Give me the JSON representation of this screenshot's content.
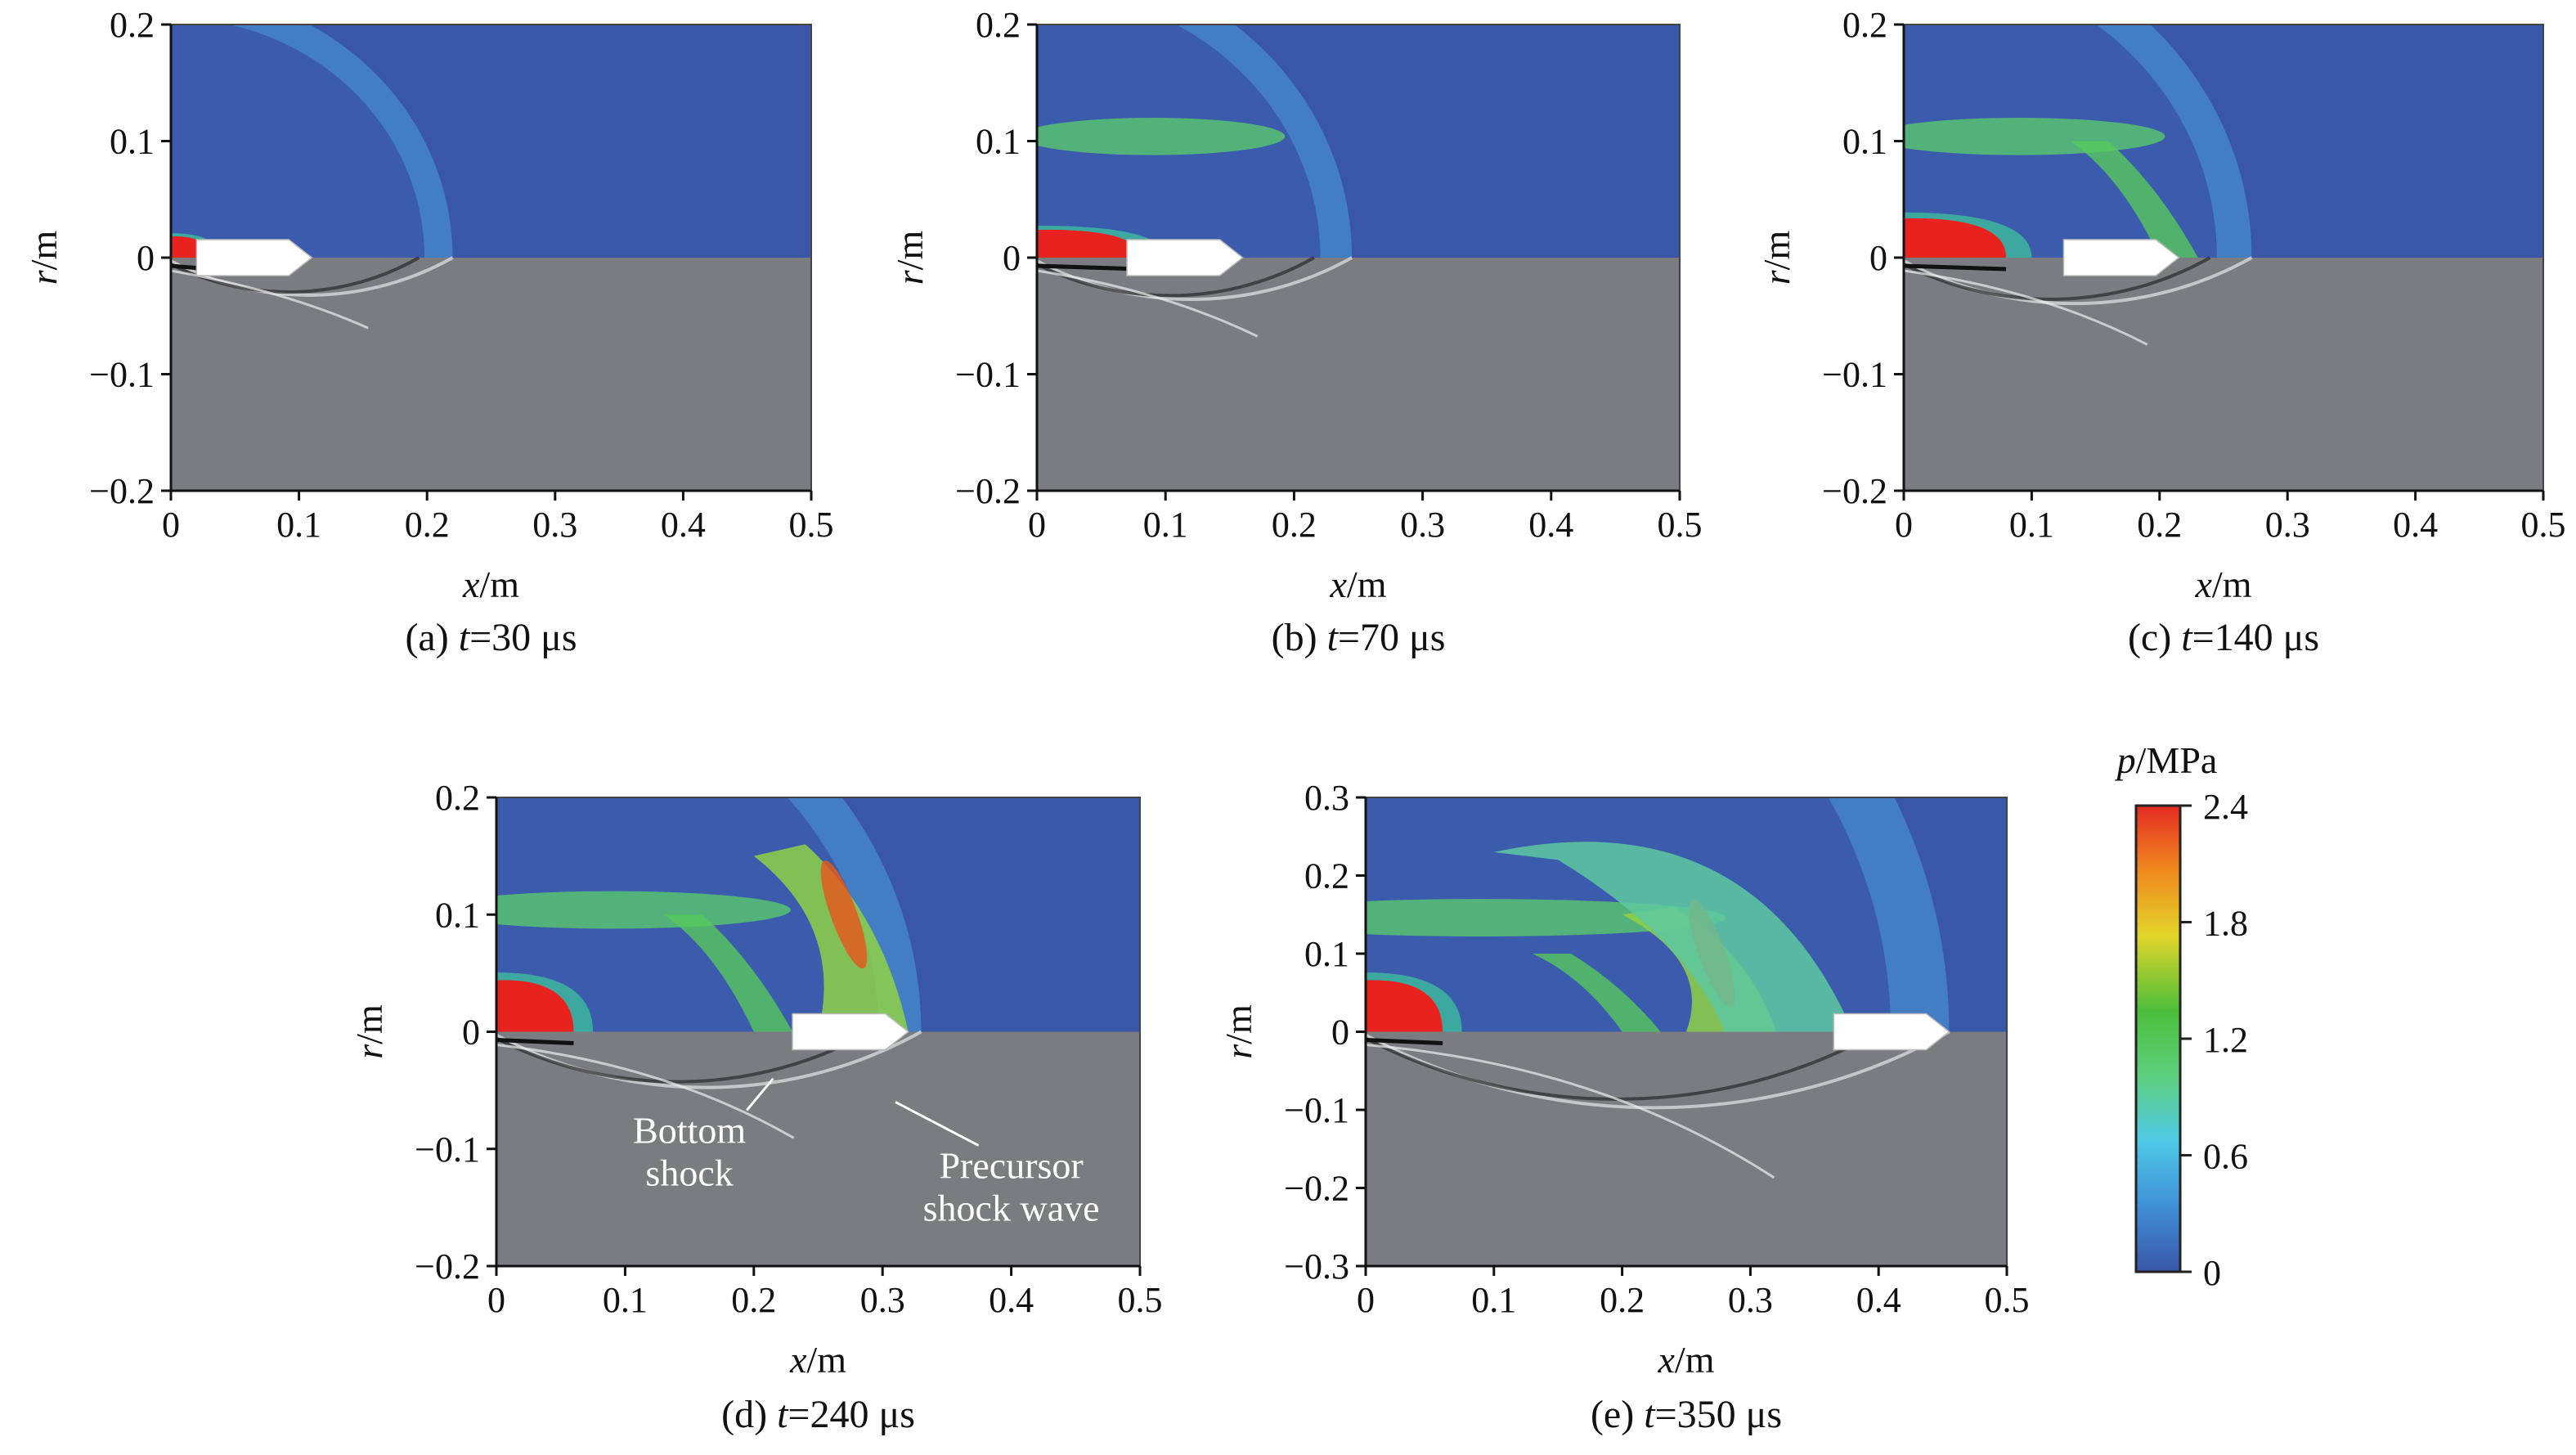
{
  "chart_data": [
    {
      "type": "heatmap",
      "panel": "(a)",
      "caption_prefix": "(a) ",
      "caption_var": "t",
      "caption_rest": "=30 μs",
      "time_us": 30,
      "xlabel_var": "x",
      "xlabel_unit": "/m",
      "ylabel_var": "r",
      "ylabel_unit": "/m",
      "xlim": [
        0,
        0.5
      ],
      "ylim": [
        -0.2,
        0.2
      ],
      "xticks": [
        0,
        0.1,
        0.2,
        0.3,
        0.4,
        0.5
      ],
      "yticks": [
        -0.2,
        -0.1,
        0,
        0.1,
        0.2
      ],
      "upper_half": "pressure contour",
      "lower_half": "numerical schlieren",
      "projectile_nose_x": 0.11,
      "shock_front_x": 0.22,
      "high_pressure_end_x": 0.03,
      "annotations": []
    },
    {
      "type": "heatmap",
      "panel": "(b)",
      "caption_prefix": "(b) ",
      "caption_var": "t",
      "caption_rest": "=70 μs",
      "time_us": 70,
      "xlabel_var": "x",
      "xlabel_unit": "/m",
      "ylabel_var": "r",
      "ylabel_unit": "/m",
      "xlim": [
        0,
        0.5
      ],
      "ylim": [
        -0.2,
        0.2
      ],
      "xticks": [
        0,
        0.1,
        0.2,
        0.3,
        0.4,
        0.5
      ],
      "yticks": [
        -0.2,
        -0.1,
        0,
        0.1,
        0.2
      ],
      "upper_half": "pressure contour",
      "lower_half": "numerical schlieren",
      "projectile_nose_x": 0.16,
      "shock_front_x": 0.245,
      "high_pressure_end_x": 0.08,
      "annotations": []
    },
    {
      "type": "heatmap",
      "panel": "(c)",
      "caption_prefix": "(c) ",
      "caption_var": "t",
      "caption_rest": "=140 μs",
      "time_us": 140,
      "xlabel_var": "x",
      "xlabel_unit": "/m",
      "ylabel_var": "r",
      "ylabel_unit": "/m",
      "xlim": [
        0,
        0.5
      ],
      "ylim": [
        -0.2,
        0.2
      ],
      "xticks": [
        0,
        0.1,
        0.2,
        0.3,
        0.4,
        0.5
      ],
      "yticks": [
        -0.2,
        -0.1,
        0,
        0.1,
        0.2
      ],
      "upper_half": "pressure contour",
      "lower_half": "numerical schlieren",
      "projectile_nose_x": 0.215,
      "shock_front_x": 0.272,
      "high_pressure_end_x": 0.08,
      "annotations": []
    },
    {
      "type": "heatmap",
      "panel": "(d)",
      "caption_prefix": "(d) ",
      "caption_var": "t",
      "caption_rest": "=240 μs",
      "time_us": 240,
      "xlabel_var": "x",
      "xlabel_unit": "/m",
      "ylabel_var": "r",
      "ylabel_unit": "/m",
      "xlim": [
        0,
        0.5
      ],
      "ylim": [
        -0.2,
        0.2
      ],
      "xticks": [
        0,
        0.1,
        0.2,
        0.3,
        0.4,
        0.5
      ],
      "yticks": [
        -0.2,
        -0.1,
        0,
        0.1,
        0.2
      ],
      "upper_half": "pressure contour",
      "lower_half": "numerical schlieren",
      "projectile_nose_x": 0.32,
      "shock_front_x": 0.33,
      "high_pressure_end_x": 0.06,
      "annotations": [
        {
          "lines": [
            "Bottom",
            "shock"
          ],
          "points_to": [
            0.215,
            -0.04
          ]
        },
        {
          "lines": [
            "Precursor",
            "shock wave"
          ],
          "points_to": [
            0.31,
            -0.06
          ]
        }
      ]
    },
    {
      "type": "heatmap",
      "panel": "(e)",
      "caption_prefix": "(e) ",
      "caption_var": "t",
      "caption_rest": "=350 μs",
      "time_us": 350,
      "xlabel_var": "x",
      "xlabel_unit": "/m",
      "ylabel_var": "r",
      "ylabel_unit": "/m",
      "xlim": [
        0,
        0.5
      ],
      "ylim": [
        -0.3,
        0.3
      ],
      "xticks": [
        0,
        0.1,
        0.2,
        0.3,
        0.4,
        0.5
      ],
      "yticks": [
        -0.3,
        -0.2,
        -0.1,
        0,
        0.1,
        0.2,
        0.3
      ],
      "upper_half": "pressure contour",
      "lower_half": "numerical schlieren",
      "projectile_nose_x": 0.455,
      "shock_front_x": 0.455,
      "high_pressure_end_x": 0.06,
      "annotations": []
    }
  ],
  "colorbar": {
    "label_var": "p",
    "label_unit": "/MPa",
    "min": 0,
    "max": 2.4,
    "ticks": [
      "2.4",
      "1.8",
      "1.2",
      "0.6",
      "0"
    ],
    "colors": [
      "#3a56a8",
      "#3f8fd6",
      "#4fc9e6",
      "#5ecf7e",
      "#4cbe3a",
      "#e2d52a",
      "#f08a1e",
      "#e32a22"
    ]
  },
  "colors": {
    "background_pressure": "#3a56a8",
    "schlieren_gray": "#7a7c80",
    "high_pressure": "#e8231f",
    "projectile": "#ffffff"
  }
}
